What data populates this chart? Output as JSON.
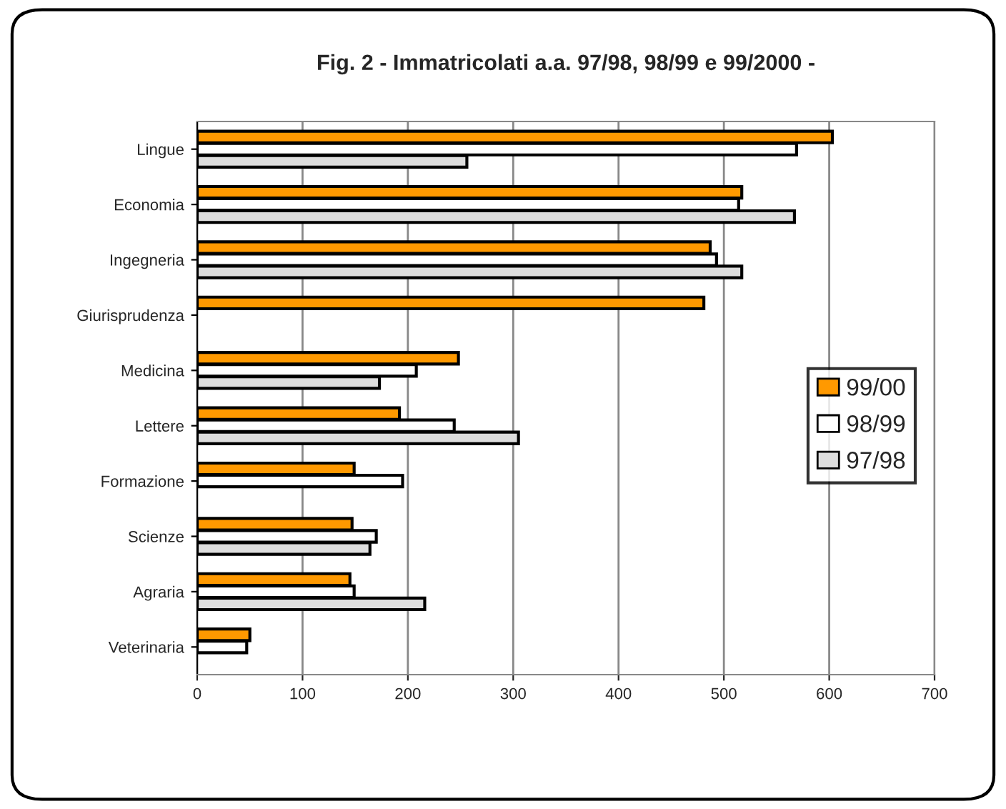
{
  "chart_data": {
    "type": "bar",
    "orientation": "horizontal",
    "title": "Fig. 2 - Immatricolati a.a. 97/98, 98/99 e 99/2000 -",
    "categories": [
      "Lingue",
      "Economia",
      "Ingegneria",
      "Giurisprudenza",
      "Medicina",
      "Lettere",
      "Formazione",
      "Scienze",
      "Agraria",
      "Veterinaria"
    ],
    "series": [
      {
        "name": "99/00",
        "color": "#ff9900",
        "values": [
          603,
          517,
          487,
          481,
          248,
          192,
          149,
          147,
          145,
          50
        ]
      },
      {
        "name": "98/99",
        "color": "#ffffff",
        "values": [
          569,
          514,
          493,
          null,
          208,
          244,
          195,
          170,
          149,
          47
        ]
      },
      {
        "name": "97/98",
        "color": "#dddddd",
        "values": [
          256,
          567,
          517,
          null,
          173,
          305,
          null,
          164,
          216,
          null
        ]
      }
    ],
    "xlim": [
      0,
      700
    ],
    "xticks": [
      0,
      100,
      200,
      300,
      400,
      500,
      600,
      700
    ],
    "grid": "x",
    "legend": "right"
  }
}
